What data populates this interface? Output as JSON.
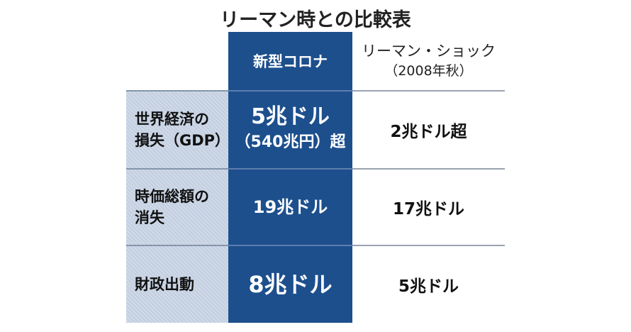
{
  "title": "リーマン時との比較表",
  "table": {
    "header": {
      "corona": "新型コロナ",
      "lehman": "リーマン・ショック",
      "lehman_note": "（2008年秋）"
    },
    "rows": [
      {
        "label": [
          "世界経済の",
          "損失（GDP）"
        ],
        "corona": [
          "5兆ドル",
          "（540兆円）超"
        ],
        "lehman": [
          "2兆ドル超"
        ]
      },
      {
        "label": [
          "時価総額の",
          "消失"
        ],
        "corona": [
          "19兆ドル"
        ],
        "lehman": [
          "17兆ドル"
        ]
      },
      {
        "label": [
          "財政出動"
        ],
        "corona": [
          "8兆ドル"
        ],
        "lehman": [
          "5兆ドル"
        ]
      }
    ]
  }
}
